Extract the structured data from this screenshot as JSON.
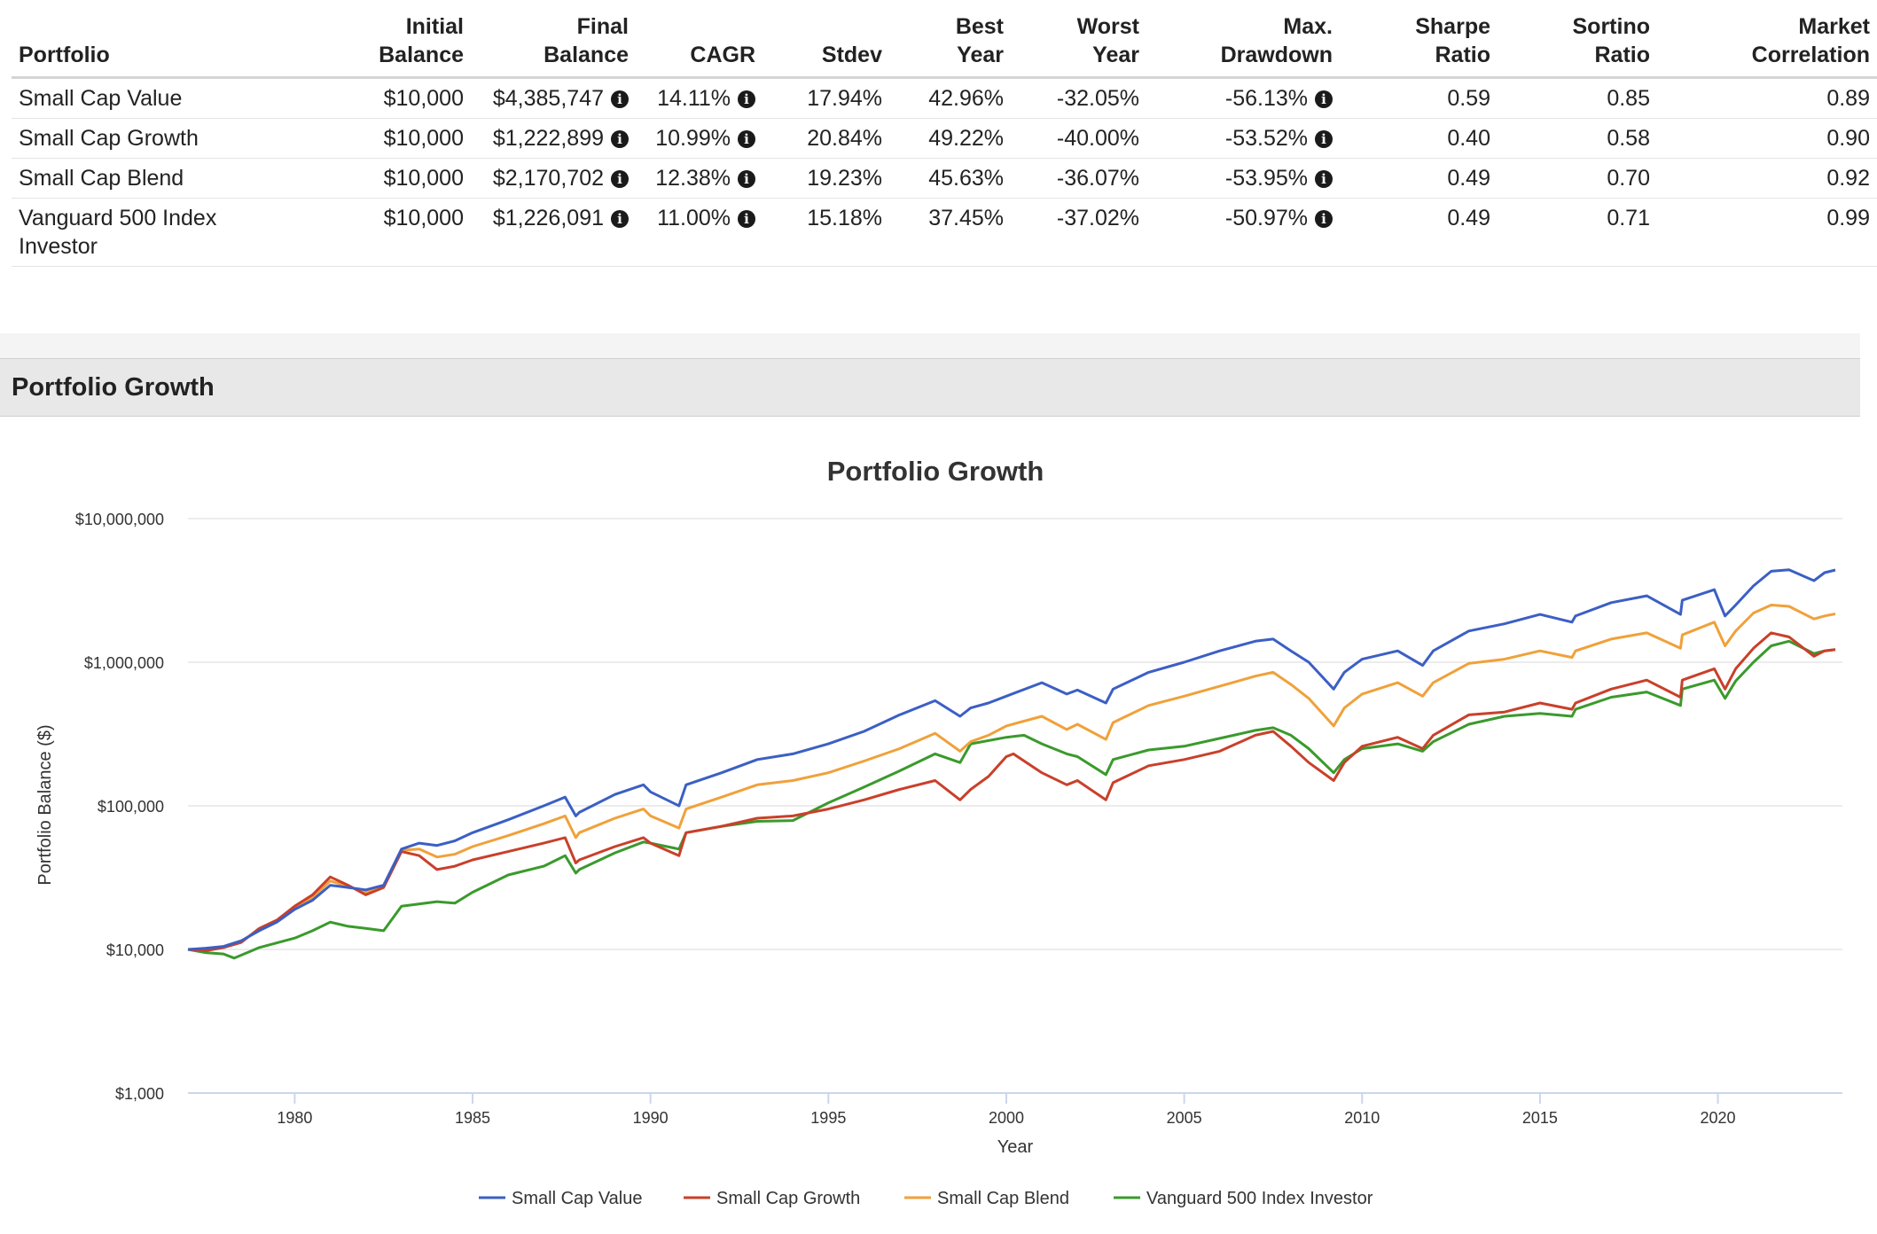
{
  "table": {
    "headers": {
      "portfolio": "Portfolio",
      "initial": [
        "Initial",
        "Balance"
      ],
      "final": [
        "Final",
        "Balance"
      ],
      "cagr": "CAGR",
      "stdev": "Stdev",
      "best": [
        "Best",
        "Year"
      ],
      "worst": [
        "Worst",
        "Year"
      ],
      "maxdd": [
        "Max.",
        "Drawdown"
      ],
      "sharpe": [
        "Sharpe",
        "Ratio"
      ],
      "sortino": [
        "Sortino",
        "Ratio"
      ],
      "corr": [
        "Market",
        "Correlation"
      ]
    },
    "info_icon": "i",
    "rows": [
      {
        "name": "Small Cap Value",
        "initial": "$10,000",
        "final": "$4,385,747",
        "cagr": "14.11%",
        "stdev": "17.94%",
        "best": "42.96%",
        "worst": "-32.05%",
        "maxdd": "-56.13%",
        "sharpe": "0.59",
        "sortino": "0.85",
        "corr": "0.89"
      },
      {
        "name": "Small Cap Growth",
        "initial": "$10,000",
        "final": "$1,222,899",
        "cagr": "10.99%",
        "stdev": "20.84%",
        "best": "49.22%",
        "worst": "-40.00%",
        "maxdd": "-53.52%",
        "sharpe": "0.40",
        "sortino": "0.58",
        "corr": "0.90"
      },
      {
        "name": "Small Cap Blend",
        "initial": "$10,000",
        "final": "$2,170,702",
        "cagr": "12.38%",
        "stdev": "19.23%",
        "best": "45.63%",
        "worst": "-36.07%",
        "maxdd": "-53.95%",
        "sharpe": "0.49",
        "sortino": "0.70",
        "corr": "0.92"
      },
      {
        "name": "Vanguard 500 Index Investor",
        "initial": "$10,000",
        "final": "$1,226,091",
        "cagr": "11.00%",
        "stdev": "15.18%",
        "best": "37.45%",
        "worst": "-37.02%",
        "maxdd": "-50.97%",
        "sharpe": "0.49",
        "sortino": "0.71",
        "corr": "0.99"
      }
    ]
  },
  "section": {
    "title": "Portfolio Growth"
  },
  "chart_data": {
    "type": "line",
    "title": "Portfolio Growth",
    "xlabel": "Year",
    "ylabel": "Portfolio Balance ($)",
    "yscale": "log",
    "ylim": [
      1000,
      10000000
    ],
    "xlim": [
      1977,
      2023.5
    ],
    "yticks": [
      1000,
      10000,
      100000,
      1000000,
      10000000
    ],
    "ytick_labels": [
      "$1,000",
      "$10,000",
      "$100,000",
      "$1,000,000",
      "$10,000,000"
    ],
    "xticks": [
      1980,
      1985,
      1990,
      1995,
      2000,
      2005,
      2010,
      2015,
      2020
    ],
    "xtick_labels": [
      "1980",
      "1985",
      "1990",
      "1995",
      "2000",
      "2005",
      "2010",
      "2015",
      "2020"
    ],
    "legend_position": "bottom",
    "series": [
      {
        "name": "Small Cap Value",
        "color": "#3b5fc4",
        "x": [
          1977,
          1977.5,
          1978,
          1978.5,
          1979,
          1979.5,
          1980,
          1980.5,
          1981,
          1981.5,
          1982,
          1982.5,
          1983,
          1983.5,
          1984,
          1984.5,
          1985,
          1986,
          1987,
          1987.6,
          1987.9,
          1988,
          1989,
          1989.8,
          1990,
          1990.8,
          1991,
          1992,
          1993,
          1994,
          1995,
          1996,
          1997,
          1998,
          1998.7,
          1999,
          1999.5,
          2000,
          2001,
          2001.7,
          2002,
          2002.8,
          2003,
          2004,
          2005,
          2006,
          2007,
          2007.5,
          2008,
          2008.5,
          2009.2,
          2009.5,
          2010,
          2011,
          2011.7,
          2012,
          2013,
          2014,
          2015,
          2015.9,
          2016,
          2017,
          2018,
          2018.95,
          2019,
          2019.9,
          2020.2,
          2020.5,
          2021,
          2021.5,
          2022,
          2022.7,
          2023,
          2023.3
        ],
        "values": [
          10000,
          10200,
          10500,
          11500,
          13500,
          15500,
          19000,
          22000,
          28000,
          27000,
          26000,
          28000,
          50000,
          55000,
          53000,
          57000,
          65000,
          80000,
          100000,
          115000,
          85000,
          90000,
          120000,
          140000,
          125000,
          100000,
          140000,
          170000,
          210000,
          230000,
          270000,
          330000,
          430000,
          540000,
          420000,
          480000,
          520000,
          580000,
          720000,
          600000,
          640000,
          520000,
          650000,
          850000,
          1000000,
          1200000,
          1400000,
          1450000,
          1200000,
          1000000,
          650000,
          850000,
          1050000,
          1200000,
          950000,
          1200000,
          1650000,
          1850000,
          2150000,
          1900000,
          2100000,
          2600000,
          2900000,
          2150000,
          2700000,
          3200000,
          2100000,
          2500000,
          3400000,
          4300000,
          4400000,
          3700000,
          4200000,
          4385747
        ]
      },
      {
        "name": "Small Cap Growth",
        "color": "#c9402a",
        "x": [
          1977,
          1977.5,
          1978,
          1978.5,
          1979,
          1979.5,
          1980,
          1980.5,
          1981,
          1981.5,
          1982,
          1982.5,
          1983,
          1983.5,
          1984,
          1984.5,
          1985,
          1986,
          1987,
          1987.6,
          1987.9,
          1988,
          1989,
          1989.8,
          1990,
          1990.8,
          1991,
          1992,
          1993,
          1994,
          1995,
          1996,
          1997,
          1998,
          1998.7,
          1999,
          1999.5,
          2000,
          2000.2,
          2001,
          2001.7,
          2002,
          2002.8,
          2003,
          2004,
          2005,
          2006,
          2007,
          2007.5,
          2008,
          2008.5,
          2009.2,
          2009.5,
          2010,
          2011,
          2011.7,
          2012,
          2013,
          2014,
          2015,
          2015.9,
          2016,
          2017,
          2018,
          2018.95,
          2019,
          2019.9,
          2020.2,
          2020.5,
          2021,
          2021.5,
          2022,
          2022.7,
          2023,
          2023.3
        ],
        "values": [
          10000,
          9800,
          10300,
          11200,
          14000,
          16000,
          20000,
          24000,
          32000,
          28000,
          24000,
          27000,
          48000,
          45000,
          36000,
          38000,
          42000,
          48000,
          55000,
          60000,
          40000,
          42000,
          52000,
          60000,
          55000,
          45000,
          65000,
          72000,
          82000,
          85000,
          95000,
          110000,
          130000,
          150000,
          110000,
          130000,
          160000,
          220000,
          230000,
          170000,
          140000,
          150000,
          110000,
          145000,
          190000,
          210000,
          240000,
          310000,
          330000,
          260000,
          200000,
          150000,
          200000,
          260000,
          300000,
          250000,
          310000,
          430000,
          450000,
          520000,
          470000,
          520000,
          650000,
          750000,
          570000,
          750000,
          900000,
          650000,
          900000,
          1250000,
          1600000,
          1500000,
          1100000,
          1200000,
          1222899
        ]
      },
      {
        "name": "Small Cap Blend",
        "color": "#f0a13a",
        "x": [
          1977,
          1977.5,
          1978,
          1978.5,
          1979,
          1979.5,
          1980,
          1980.5,
          1981,
          1981.5,
          1982,
          1982.5,
          1983,
          1983.5,
          1984,
          1984.5,
          1985,
          1986,
          1987,
          1987.6,
          1987.9,
          1988,
          1989,
          1989.8,
          1990,
          1990.8,
          1991,
          1992,
          1993,
          1994,
          1995,
          1996,
          1997,
          1998,
          1998.7,
          1999,
          1999.5,
          2000,
          2001,
          2001.7,
          2002,
          2002.8,
          2003,
          2004,
          2005,
          2006,
          2007,
          2007.5,
          2008,
          2008.5,
          2009.2,
          2009.5,
          2010,
          2011,
          2011.7,
          2012,
          2013,
          2014,
          2015,
          2015.9,
          2016,
          2017,
          2018,
          2018.95,
          2019,
          2019.9,
          2020.2,
          2020.5,
          2021,
          2021.5,
          2022,
          2022.7,
          2023,
          2023.3
        ],
        "values": [
          10000,
          10100,
          10400,
          11400,
          13800,
          15800,
          19500,
          23000,
          30000,
          27500,
          25000,
          27500,
          49000,
          50000,
          44000,
          46000,
          52000,
          62000,
          75000,
          85000,
          60000,
          65000,
          82000,
          95000,
          85000,
          70000,
          95000,
          115000,
          140000,
          150000,
          170000,
          205000,
          250000,
          320000,
          240000,
          280000,
          310000,
          360000,
          420000,
          340000,
          370000,
          290000,
          380000,
          500000,
          580000,
          680000,
          800000,
          850000,
          700000,
          560000,
          360000,
          480000,
          600000,
          720000,
          580000,
          720000,
          980000,
          1050000,
          1200000,
          1080000,
          1200000,
          1450000,
          1600000,
          1250000,
          1550000,
          1900000,
          1300000,
          1650000,
          2200000,
          2500000,
          2450000,
          2000000,
          2100000,
          2170702
        ]
      },
      {
        "name": "Vanguard 500 Index Investor",
        "color": "#3a9a2c",
        "x": [
          1977,
          1977.5,
          1978,
          1978.3,
          1978.8,
          1979,
          1980,
          1980.5,
          1981,
          1981.5,
          1982,
          1982.5,
          1983,
          1984,
          1984.5,
          1985,
          1986,
          1987,
          1987.6,
          1987.9,
          1988,
          1989,
          1989.8,
          1990,
          1990.8,
          1991,
          1992,
          1993,
          1994,
          1995,
          1996,
          1997,
          1998,
          1998.7,
          1999,
          2000,
          2000.5,
          2001,
          2001.7,
          2002,
          2002.8,
          2003,
          2004,
          2005,
          2006,
          2007,
          2007.5,
          2008,
          2008.5,
          2009.2,
          2009.5,
          2010,
          2011,
          2011.7,
          2012,
          2013,
          2014,
          2015,
          2015.9,
          2016,
          2017,
          2018,
          2018.95,
          2019,
          2019.9,
          2020.2,
          2020.5,
          2021,
          2021.5,
          2022,
          2022.7,
          2023,
          2023.3
        ],
        "values": [
          10000,
          9500,
          9300,
          8700,
          9800,
          10300,
          12000,
          13500,
          15500,
          14500,
          14000,
          13500,
          20000,
          21500,
          21000,
          25000,
          33000,
          38000,
          45000,
          34000,
          36000,
          47000,
          56000,
          55000,
          50000,
          65000,
          72000,
          78000,
          79000,
          105000,
          135000,
          175000,
          230000,
          200000,
          270000,
          300000,
          310000,
          270000,
          230000,
          220000,
          165000,
          210000,
          245000,
          260000,
          295000,
          335000,
          350000,
          310000,
          250000,
          170000,
          210000,
          250000,
          270000,
          240000,
          280000,
          370000,
          420000,
          440000,
          420000,
          470000,
          570000,
          620000,
          500000,
          650000,
          750000,
          560000,
          740000,
          1000000,
          1300000,
          1400000,
          1150000,
          1200000,
          1226091
        ]
      }
    ]
  }
}
